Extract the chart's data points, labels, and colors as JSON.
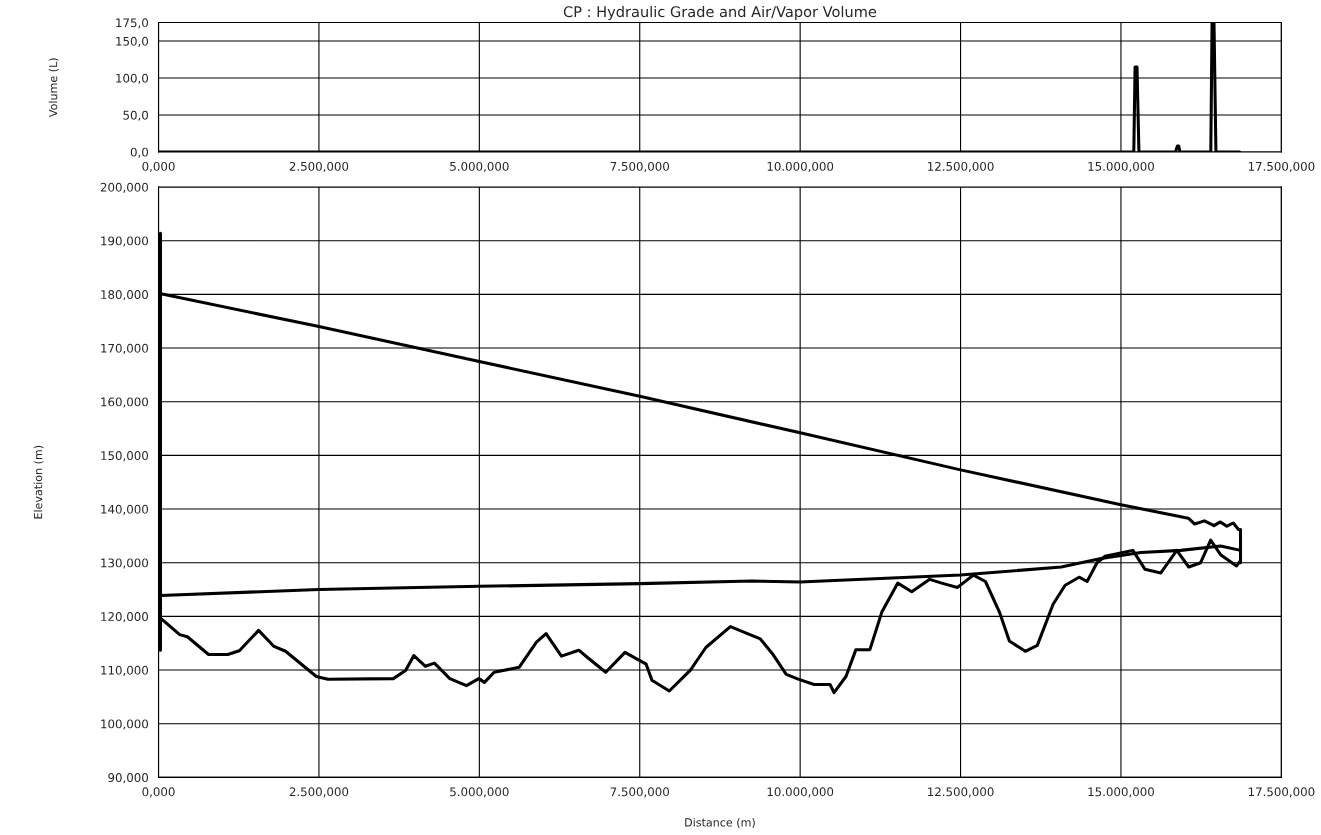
{
  "chart_data": [
    {
      "type": "line",
      "title": "CP : Hydraulic Grade and Air/Vapor Volume",
      "ylabel": "Volume (L)",
      "xlim": [
        0,
        17500
      ],
      "xticks": [
        {
          "value": 0,
          "label": "0,000"
        },
        {
          "value": 2500,
          "label": "2.500,000"
        },
        {
          "value": 5000,
          "label": "5.000,000"
        },
        {
          "value": 7500,
          "label": "7.500,000"
        },
        {
          "value": 10000,
          "label": "10.000,000"
        },
        {
          "value": 12500,
          "label": "12.500,000"
        },
        {
          "value": 15000,
          "label": "15.000,000"
        },
        {
          "value": 17500,
          "label": "17.500,000"
        }
      ],
      "ylim": [
        0,
        175
      ],
      "yticks": [
        {
          "value": 0,
          "label": "0,0"
        },
        {
          "value": 50,
          "label": "50,0"
        },
        {
          "value": 100,
          "label": "100,0"
        },
        {
          "value": 150,
          "label": "150,0"
        },
        {
          "value": 175,
          "label": "175,0"
        }
      ],
      "grid": true,
      "series": [
        {
          "color": "#000000",
          "x": [
            0,
            15200,
            15220,
            15250,
            15280,
            15850,
            15880,
            15900,
            15920,
            16400,
            16420,
            16450,
            16480,
            16850
          ],
          "values": [
            0,
            0,
            115,
            115,
            0,
            0,
            8,
            8,
            0,
            0,
            175,
            175,
            0,
            0
          ]
        }
      ]
    },
    {
      "type": "line",
      "xlabel": "Distance (m)",
      "ylabel": "Elevation (m)",
      "xlim": [
        0,
        17500
      ],
      "xticks": [
        {
          "value": 0,
          "label": "0,000"
        },
        {
          "value": 2500,
          "label": "2.500,000"
        },
        {
          "value": 5000,
          "label": "5.000,000"
        },
        {
          "value": 7500,
          "label": "7.500,000"
        },
        {
          "value": 10000,
          "label": "10.000,000"
        },
        {
          "value": 12500,
          "label": "12.500,000"
        },
        {
          "value": 15000,
          "label": "15.000,000"
        },
        {
          "value": 17500,
          "label": "17.500,000"
        }
      ],
      "ylim": [
        90,
        200
      ],
      "yticks": [
        {
          "value": 90,
          "label": "90,000"
        },
        {
          "value": 100,
          "label": "100,000"
        },
        {
          "value": 110,
          "label": "110,000"
        },
        {
          "value": 120,
          "label": "120,000"
        },
        {
          "value": 130,
          "label": "130,000"
        },
        {
          "value": 140,
          "label": "140,000"
        },
        {
          "value": 150,
          "label": "150,000"
        },
        {
          "value": 160,
          "label": "160,000"
        },
        {
          "value": 170,
          "label": "170,000"
        },
        {
          "value": 180,
          "label": "180,000"
        },
        {
          "value": 190,
          "label": "190,000"
        },
        {
          "value": 200,
          "label": "200,000"
        }
      ],
      "grid": true,
      "series": [
        {
          "color": "#000000",
          "x": [
            0,
            2500,
            5000,
            7500,
            10000,
            12500,
            15000,
            16050,
            16150,
            16300,
            16450,
            16550,
            16650,
            16750,
            16832,
            16863,
            16863
          ],
          "values": [
            180.2,
            174,
            167.5,
            161,
            154.2,
            147.3,
            140.8,
            138.3,
            137.2,
            137.8,
            136.9,
            137.6,
            136.8,
            137.4,
            136.2,
            136.2,
            130
          ]
        },
        {
          "color": "#000000",
          "x": [
            30,
            30,
            30,
            2500,
            5000,
            7500,
            9250,
            10000,
            12500,
            14068,
            14690,
            15311,
            15932,
            16553,
            16863
          ],
          "values": [
            191.4,
            113.7,
            123.9,
            125,
            125.6,
            126.1,
            126.6,
            126.4,
            127.7,
            129.2,
            130.8,
            131.9,
            132.3,
            133.1,
            132.3
          ]
        },
        {
          "color": "#000000",
          "x": [
            0,
            330,
            450,
            780,
            1080,
            1260,
            1560,
            1800,
            1980,
            2460,
            2640,
            3660,
            3850,
            3980,
            4160,
            4300,
            4540,
            4800,
            4990,
            5080,
            5230,
            5620,
            5890,
            6040,
            6280,
            6550,
            6700,
            6970,
            7270,
            7600,
            7690,
            7960,
            8290,
            8530,
            8913,
            9379,
            9565,
            9783,
            9969,
            10217,
            10466,
            10528,
            10714,
            10869,
            11087,
            11273,
            11522,
            11739,
            12019,
            12205,
            12453,
            12701,
            12888,
            13106,
            13261,
            13509,
            13696,
            13944,
            14130,
            14348,
            14472,
            14627,
            14752,
            15186,
            15373,
            15621,
            15870,
            16056,
            16242,
            16398,
            16553,
            16801,
            16863
          ],
          "values": [
            120,
            116.6,
            116.2,
            112.9,
            112.9,
            113.6,
            117.4,
            114.4,
            113.5,
            108.8,
            108.3,
            108.4,
            109.9,
            112.7,
            110.7,
            111.3,
            108.4,
            107.1,
            108.4,
            107.7,
            109.6,
            110.5,
            115.2,
            116.8,
            112.6,
            113.7,
            112.2,
            109.6,
            113.3,
            111.1,
            108.1,
            106.1,
            110.0,
            114.2,
            118.1,
            115.8,
            113.1,
            109.2,
            108.3,
            107.3,
            107.3,
            105.8,
            108.8,
            113.8,
            113.8,
            120.8,
            126.2,
            124.6,
            126.9,
            126.2,
            125.4,
            127.7,
            126.5,
            120.8,
            115.4,
            113.5,
            114.6,
            122.3,
            125.8,
            127.3,
            126.5,
            130,
            131.2,
            132.3,
            128.8,
            128.1,
            132.3,
            129.2,
            130,
            134.2,
            131.5,
            129.4,
            130.4
          ]
        }
      ]
    }
  ]
}
